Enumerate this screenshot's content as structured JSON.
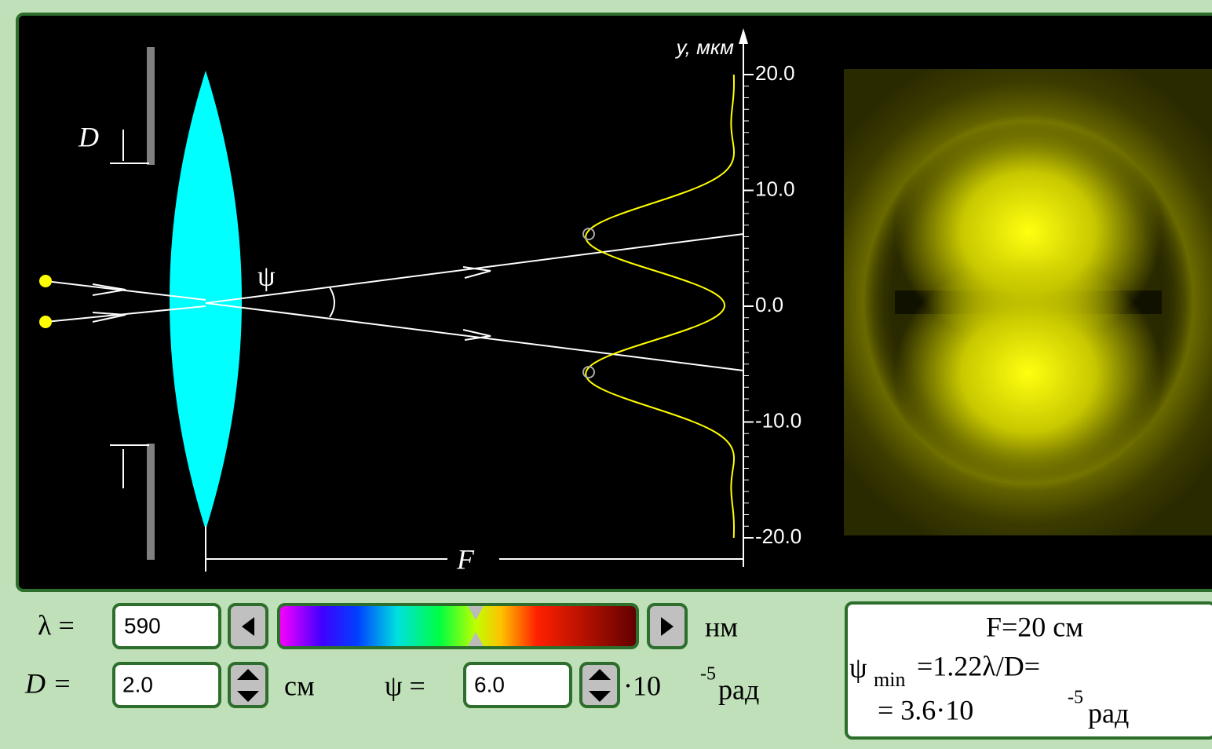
{
  "diagram": {
    "labels": {
      "aperture": "D",
      "angle": "ψ",
      "focal": "F"
    },
    "axis": {
      "title": "y, мкм",
      "ticks": [
        "20.0",
        "10.0",
        "0.0",
        "-10.0",
        "-20.0"
      ]
    }
  },
  "controls": {
    "wavelength": {
      "label": "λ =",
      "value": "590",
      "unit": "нм"
    },
    "diameter": {
      "label": "D =",
      "value": "2.0",
      "unit": "см"
    },
    "angle": {
      "label": "ψ =",
      "value": "6.0",
      "unit_prefix": "·10",
      "unit_exponent": "-5",
      "unit": "рад"
    }
  },
  "info": {
    "focal": "F=20 см",
    "formula_symbol": "ψ",
    "formula_subscript": "min",
    "formula": "=1.22λ/D=",
    "result": "= 3.6·10",
    "result_exponent": "-5",
    "result_unit": "рад"
  }
}
